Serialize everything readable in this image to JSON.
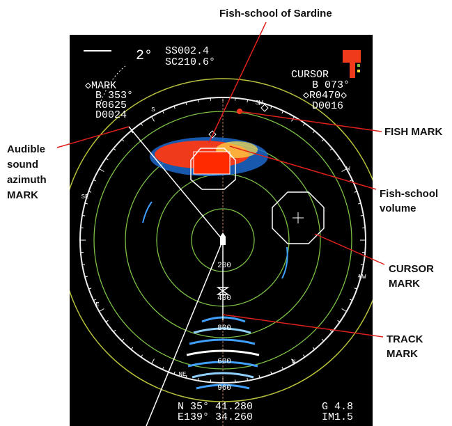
{
  "callouts": {
    "sardine": "Fish-school of Sardine",
    "audible": [
      "Audible",
      "sound",
      "azimuth",
      "MARK"
    ],
    "fish_mark": "FISH MARK",
    "volume": [
      "Fish-school",
      "volume"
    ],
    "cursor": [
      "CURSOR",
      "MARK"
    ],
    "track": [
      "TRACK",
      "MARK"
    ]
  },
  "screen": {
    "tilt": "2°",
    "ss": "SS002.4",
    "sc": "SC210.6°",
    "mark": [
      "◇MARK",
      "B 353°",
      "R0625",
      "D0024"
    ],
    "cursor": [
      "CURSOR",
      "B 073°",
      "◇R0470◇",
      "D0016"
    ],
    "rings": [
      "200",
      "400",
      "800",
      "600",
      "960"
    ],
    "compass": [
      "S",
      "SW",
      "W",
      "NW",
      "N",
      "NE",
      "E",
      "SE"
    ],
    "position": [
      "N 35° 41.280",
      "E139° 34.260"
    ],
    "gain": [
      "G 4.8",
      "IM1.5"
    ]
  }
}
